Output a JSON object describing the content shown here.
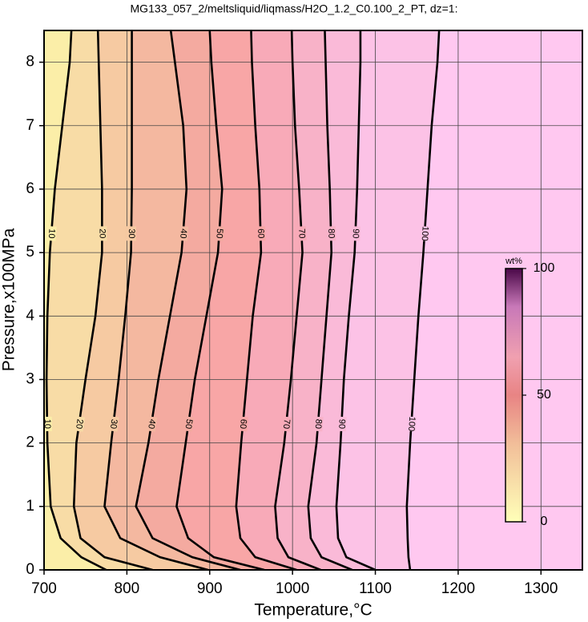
{
  "chart_data": {
    "type": "contour",
    "title": "MG133_057_2/meltsliquid/liqmass/H2O_1.2_C0.100_2_PT, dz=1:",
    "x_label": "Temperature,°C",
    "y_label": "Pressure,x100MPa",
    "xlim": [
      700,
      1350
    ],
    "ylim": [
      0,
      8.5
    ],
    "xticks": [
      700,
      800,
      900,
      1000,
      1100,
      1200,
      1300
    ],
    "yticks": [
      0,
      1,
      2,
      3,
      4,
      5,
      6,
      7,
      8
    ],
    "grid": true,
    "pressures": [
      0,
      0.2,
      0.5,
      1,
      2,
      3,
      4,
      5,
      6,
      7,
      8,
      8.5
    ],
    "contours": [
      {
        "level": 10,
        "temperatures": [
          775,
          745,
          720,
          708,
          704,
          703,
          704,
          707,
          713,
          722,
          731,
          733
        ]
      },
      {
        "level": 20,
        "temperatures": [
          831,
          773,
          744,
          736,
          739,
          750,
          762,
          770,
          770,
          768,
          766,
          765
        ]
      },
      {
        "level": 30,
        "temperatures": [
          898,
          840,
          792,
          773,
          781,
          790,
          798,
          805,
          806,
          806,
          806,
          806
        ]
      },
      {
        "level": 40,
        "temperatures": [
          937,
          879,
          831,
          811,
          826,
          838,
          852,
          866,
          872,
          868,
          858,
          853
        ]
      },
      {
        "level": 50,
        "temperatures": [
          966,
          905,
          874,
          860,
          871,
          882,
          896,
          910,
          915,
          908,
          902,
          900
        ]
      },
      {
        "level": 60,
        "temperatures": [
          1005,
          955,
          937,
          932,
          938,
          945,
          952,
          962,
          960,
          955,
          951,
          950
        ]
      },
      {
        "level": 70,
        "temperatures": [
          1034,
          995,
          982,
          979,
          990,
          998,
          1005,
          1012,
          1008,
          1003,
          1000,
          999
        ]
      },
      {
        "level": 80,
        "temperatures": [
          1072,
          1035,
          1022,
          1019,
          1029,
          1035,
          1041,
          1047,
          1045,
          1042,
          1040,
          1039
        ]
      },
      {
        "level": 90,
        "temperatures": [
          1100,
          1065,
          1055,
          1053,
          1058,
          1062,
          1068,
          1075,
          1078,
          1080,
          1082,
          1082
        ]
      },
      {
        "level": 100,
        "temperatures": [
          1142,
          1140,
          1139,
          1138,
          1142,
          1147,
          1152,
          1158,
          1163,
          1168,
          1175,
          1177
        ]
      }
    ],
    "band_colors": [
      "#fbeea8",
      "#f8dca6",
      "#f6caa2",
      "#f4b8a0",
      "#f4aaa0",
      "#f8a6a6",
      "#f8aab8",
      "#f8b2c8",
      "#fabad8",
      "#fcc2e6",
      "#ffc8f0"
    ],
    "colorbar": {
      "label": "wt%",
      "lim": [
        0,
        100
      ],
      "ticks": [
        0,
        50,
        100
      ],
      "stops": [
        [
          0,
          "#ffffb8"
        ],
        [
          30,
          "#f2c09a"
        ],
        [
          50,
          "#e88484"
        ],
        [
          65,
          "#f0a0b0"
        ],
        [
          85,
          "#c878b8"
        ],
        [
          100,
          "#4a0848"
        ]
      ]
    }
  }
}
